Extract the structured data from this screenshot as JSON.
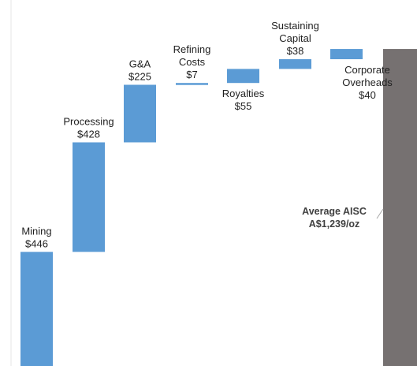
{
  "chart_data": {
    "type": "bar",
    "subtype": "waterfall",
    "categories": [
      "Mining",
      "Processing",
      "G&A",
      "Refining Costs",
      "Royalties",
      "Sustaining Capital",
      "Corporate Overheads"
    ],
    "values": [
      446,
      428,
      225,
      7,
      55,
      38,
      40
    ],
    "value_labels": [
      "$446",
      "$428",
      "$225",
      "$7",
      "$55",
      "$38",
      "$40"
    ],
    "category_lines": [
      [
        "Mining"
      ],
      [
        "Processing"
      ],
      [
        "G&A"
      ],
      [
        "Refining",
        "Costs"
      ],
      [
        "Royalties"
      ],
      [
        "Sustaining",
        "Capital"
      ],
      [
        "Corporate",
        "Overheads"
      ]
    ],
    "label_position": [
      "above",
      "above",
      "above",
      "above",
      "below",
      "above",
      "right"
    ],
    "total": {
      "value": 1239,
      "label_lines": [
        "Average AISC",
        "A$1,239/oz"
      ]
    },
    "grid": false,
    "legend": "none",
    "colors": {
      "bar": "#5B9BD5",
      "total": "#767171",
      "text": "#1f1f1f"
    }
  }
}
